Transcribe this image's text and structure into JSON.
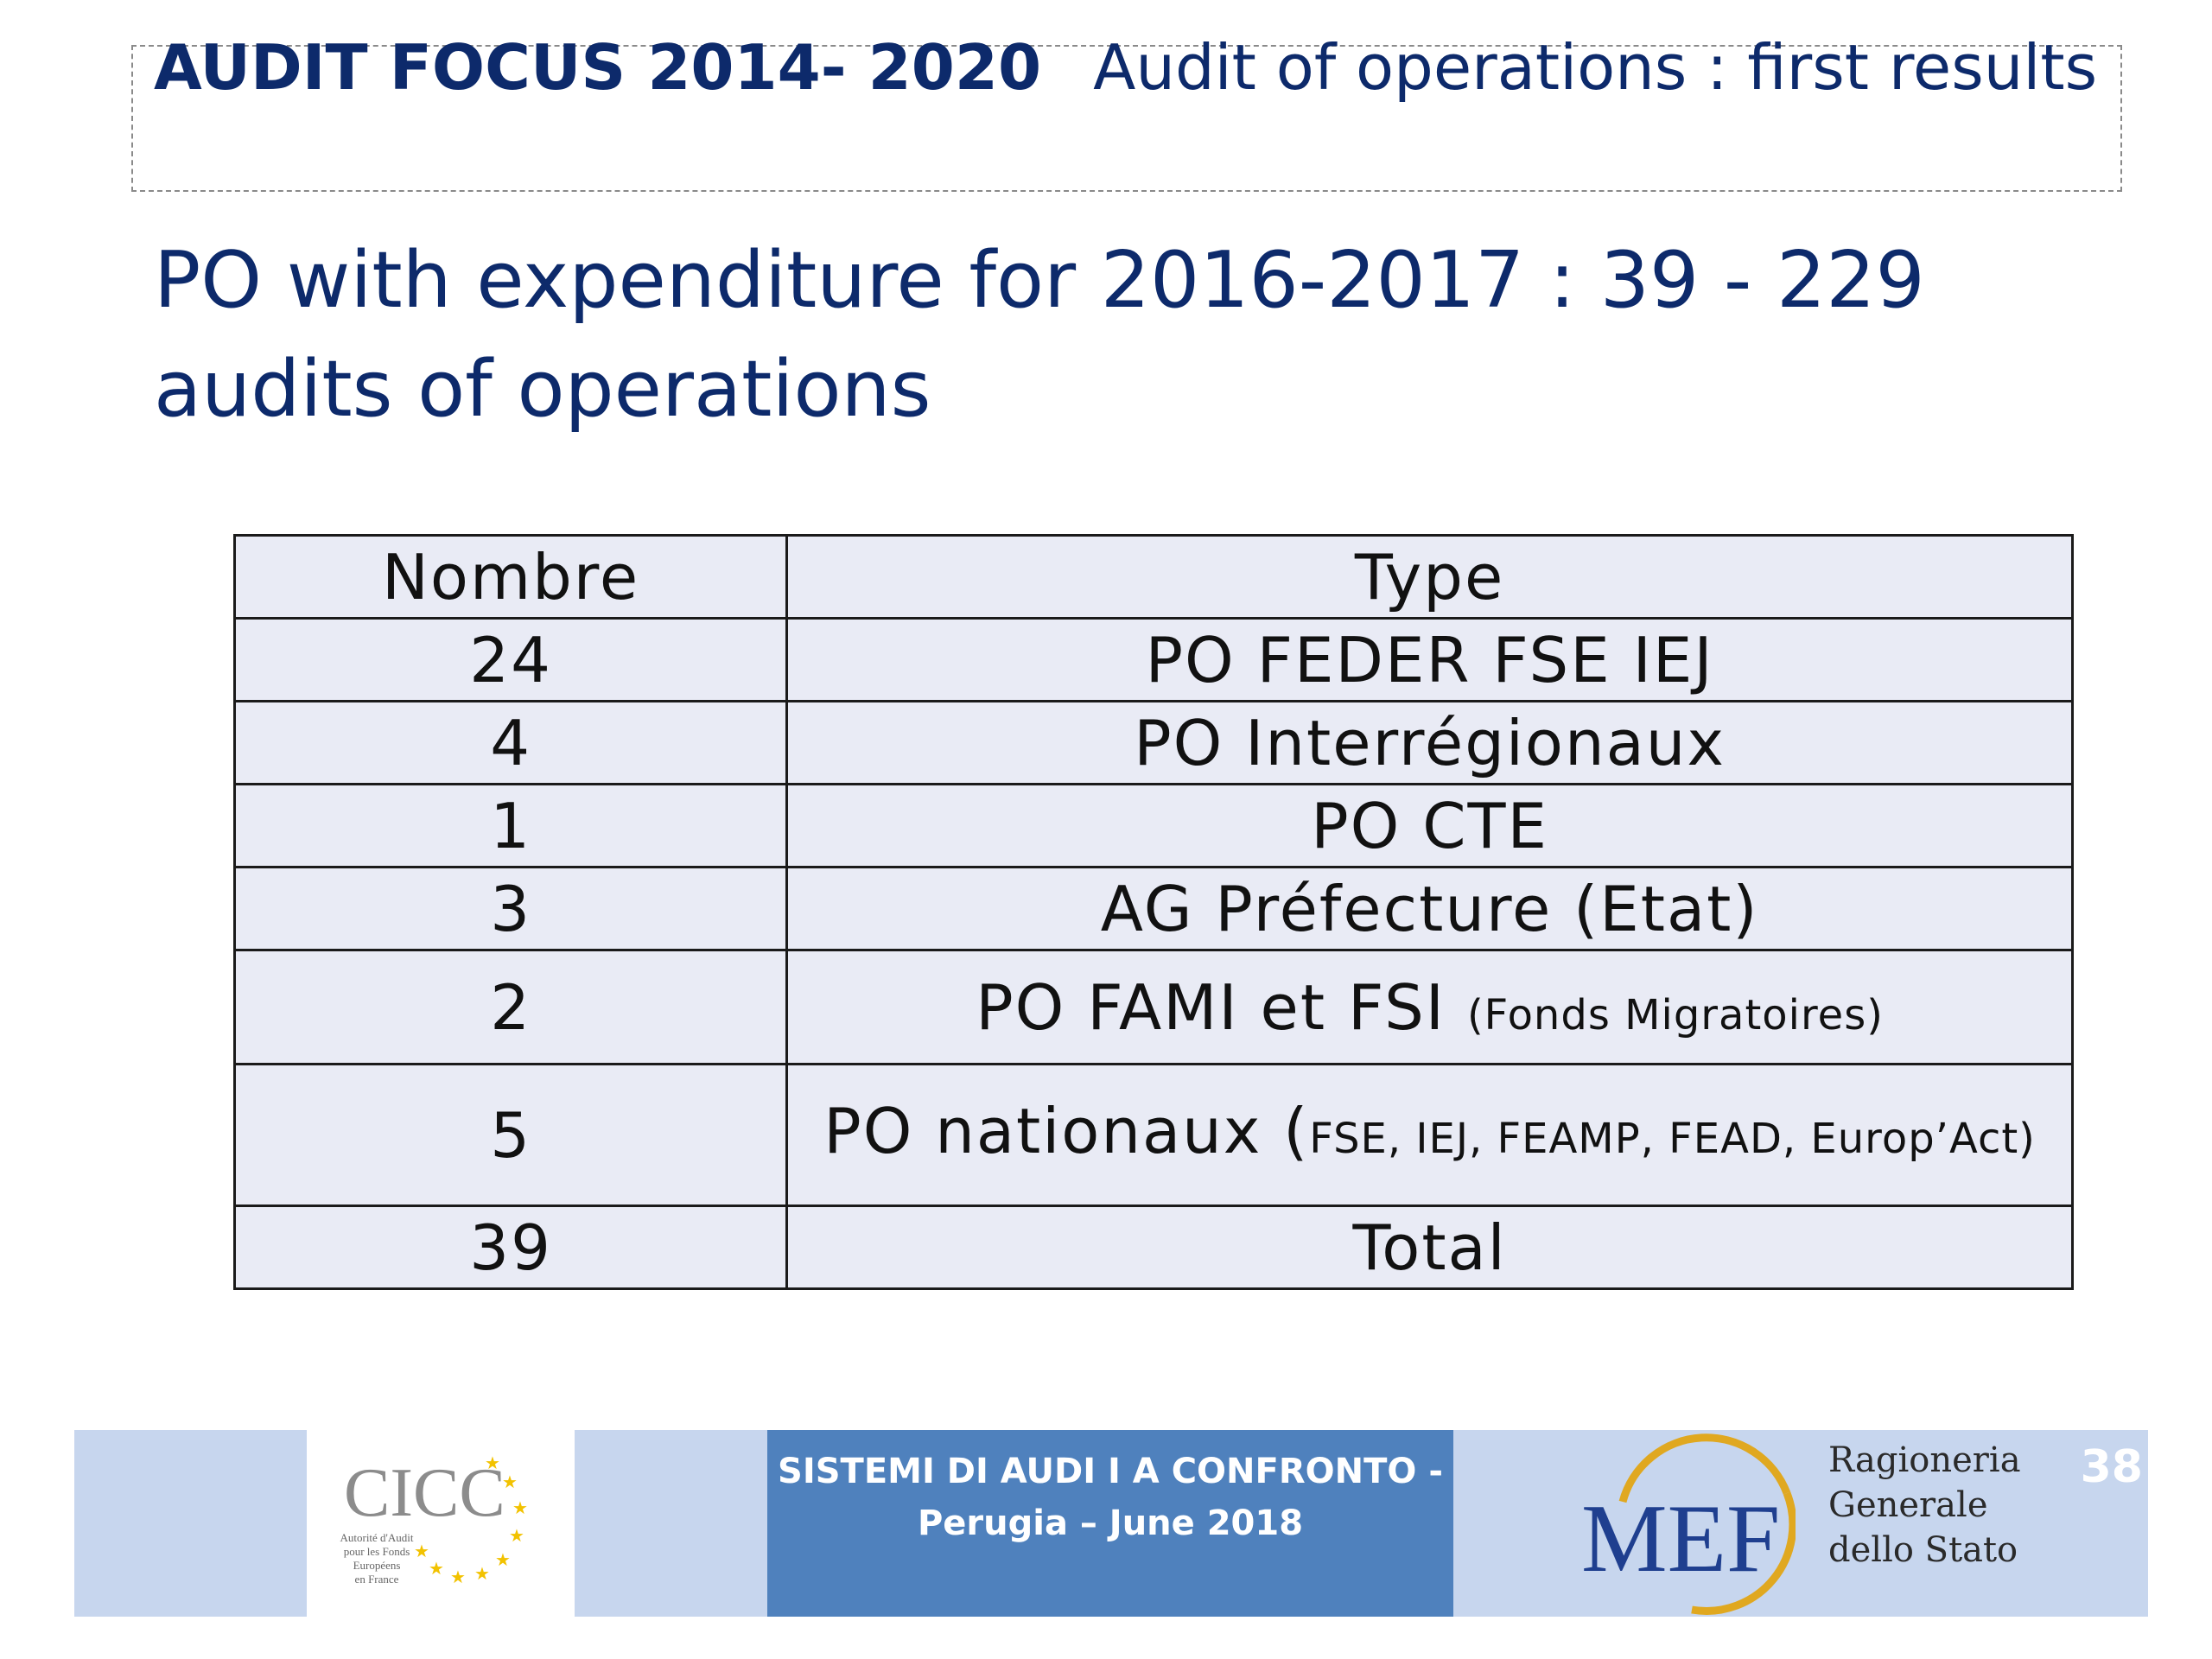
{
  "header": {
    "title_bold": "AUDIT FOCUS  2014- 2020",
    "title_rest": "Audit of operations  : first results"
  },
  "subtitle": "PO with expenditure for  2016-2017  : 39  -  229 audits of operations",
  "table": {
    "headers": [
      "Nombre",
      "Type"
    ],
    "rows": [
      {
        "nombre": "24",
        "type": "PO FEDER FSE IEJ",
        "note": ""
      },
      {
        "nombre": "4",
        "type": "PO  Interrégionaux",
        "note": ""
      },
      {
        "nombre": "1",
        "type": "PO  CTE",
        "note": ""
      },
      {
        "nombre": "3",
        "type": "AG Préfecture (Etat)",
        "note": ""
      },
      {
        "nombre": "2",
        "type": "PO FAMI et FSI",
        "note": "(Fonds Migratoires)"
      },
      {
        "nombre": "5",
        "type": "PO nationaux (",
        "note": "FSE, IEJ, FEAMP, FEAD, Europ’Act)"
      },
      {
        "nombre": "39",
        "type": "Total",
        "note": ""
      }
    ]
  },
  "footer": {
    "center_line1": "SISTEMI DI AUDI I A CONFRONTO  -",
    "center_line2": "Perugia – June 2018",
    "cicc_logo_text": "CICC",
    "cicc_caption": [
      "Autorité d'Audit",
      "pour les Fonds",
      "Européens",
      "en France"
    ],
    "mef_logo_text": "MEF",
    "rgs_lines": [
      "Ragioneria",
      "Generale",
      "dello Stato"
    ],
    "slide_number": "38",
    "colors": {
      "band": "#c7d6ee",
      "center": "#4f81bd",
      "mef_blue": "#1f3f8f",
      "mef_gold": "#e0a820"
    }
  }
}
